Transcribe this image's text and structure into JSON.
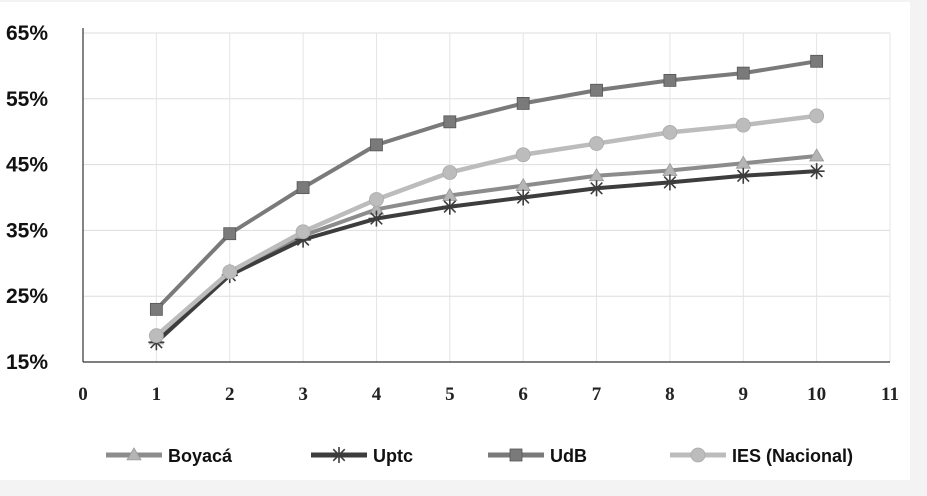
{
  "chart_data": {
    "type": "line",
    "title": "",
    "xlabel": "",
    "ylabel": "",
    "x": [
      1,
      2,
      3,
      4,
      5,
      6,
      7,
      8,
      9,
      10
    ],
    "xlim": [
      0,
      11
    ],
    "ylim": [
      15,
      65
    ],
    "x_ticks": [
      "0",
      "1",
      "2",
      "3",
      "4",
      "5",
      "6",
      "7",
      "8",
      "9",
      "10",
      "11"
    ],
    "y_ticks": [
      "15%",
      "25%",
      "35%",
      "45%",
      "55%",
      "65%"
    ],
    "y_tick_values": [
      15,
      25,
      35,
      45,
      55,
      65
    ],
    "grid": true,
    "legend_position": "bottom",
    "series": [
      {
        "name": "Boyacá",
        "marker": "triangle",
        "color": "#8c8c8c",
        "values": [
          18.5,
          28.8,
          34.2,
          38.2,
          40.3,
          41.8,
          43.3,
          44.1,
          45.2,
          46.3
        ]
      },
      {
        "name": "Uptc",
        "marker": "asterisk",
        "color": "#3d3d3d",
        "values": [
          18.0,
          28.2,
          33.6,
          36.8,
          38.6,
          40.0,
          41.4,
          42.3,
          43.3,
          44.0
        ]
      },
      {
        "name": "UdB",
        "marker": "square",
        "color": "#7a7a7a",
        "values": [
          23.0,
          34.5,
          41.5,
          48.0,
          51.5,
          54.3,
          56.3,
          57.8,
          58.9,
          60.7
        ]
      },
      {
        "name": "IES (Nacional)",
        "marker": "circle",
        "color": "#bcbcbc",
        "values": [
          19.0,
          28.7,
          34.8,
          39.7,
          43.8,
          46.5,
          48.2,
          49.9,
          51.0,
          52.4
        ]
      }
    ]
  }
}
